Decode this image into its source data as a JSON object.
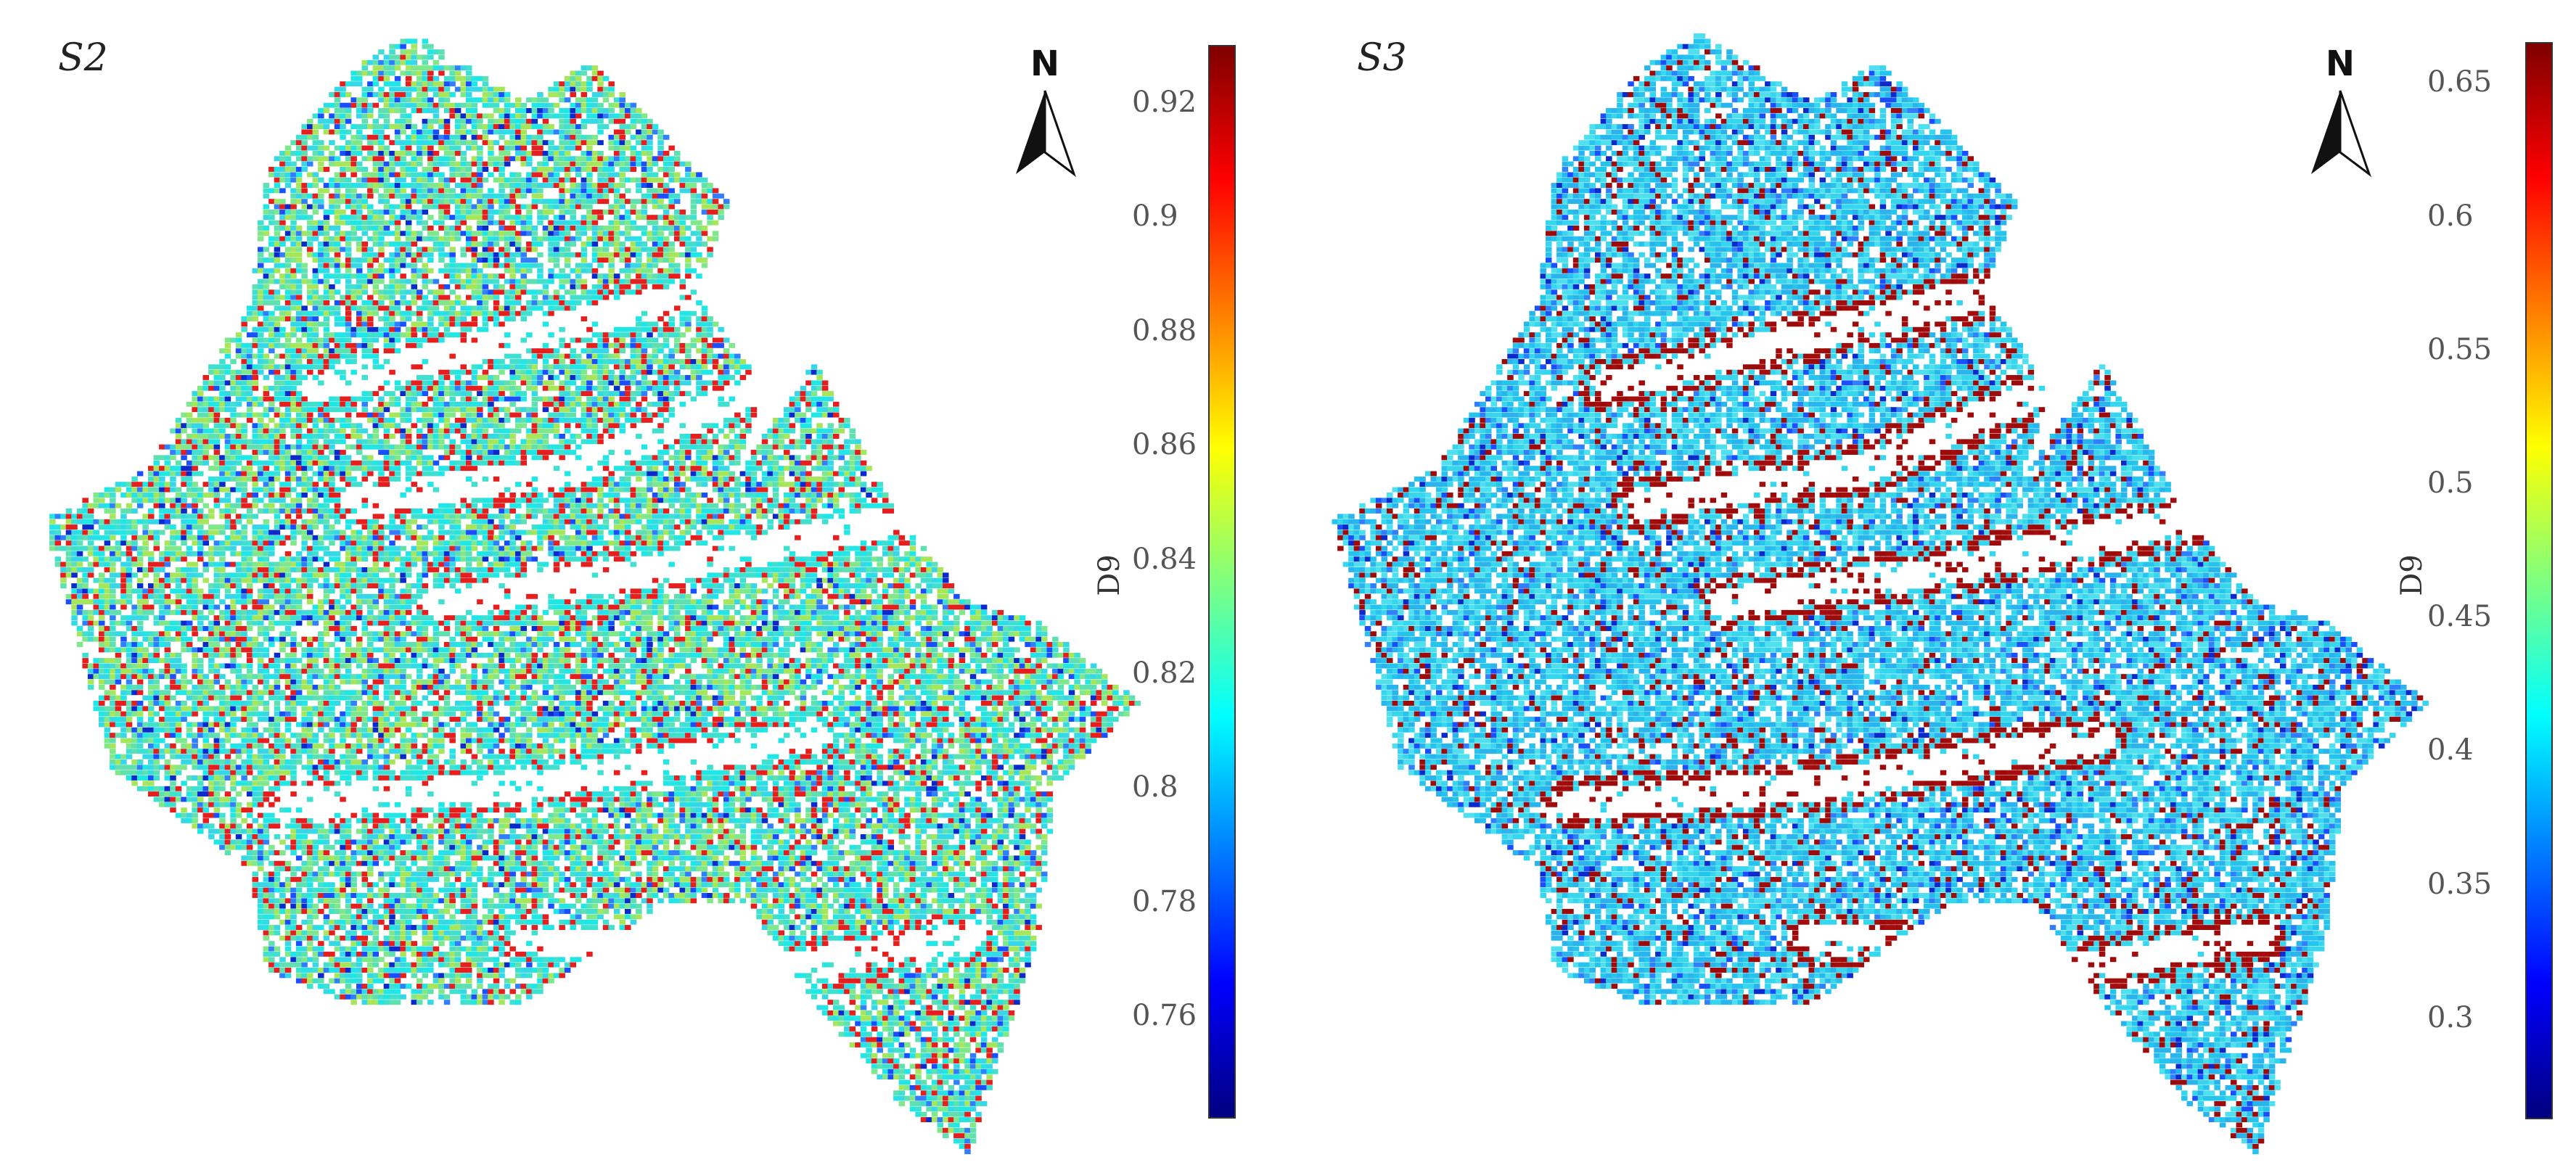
{
  "panels": [
    {
      "label": "S2",
      "north": "N",
      "colorbar": {
        "label": "D9",
        "ticks": [
          "0.92",
          "0.9",
          "0.88",
          "0.86",
          "0.84",
          "0.82",
          "0.8",
          "0.78",
          "0.76"
        ],
        "min": 0.742,
        "max": 0.93,
        "tick_values": [
          0.92,
          0.9,
          0.88,
          0.86,
          0.84,
          0.82,
          0.8,
          0.78,
          0.76
        ],
        "colormap": "jet",
        "colors": [
          "#00007f",
          "#0000ff",
          "#007fff",
          "#00ffff",
          "#7fff7f",
          "#ffff00",
          "#ff7f00",
          "#ff0000",
          "#7f0000"
        ]
      }
    },
    {
      "label": "S3",
      "north": "N",
      "colorbar": {
        "label": "D9",
        "ticks": [
          "0.65",
          "0.6",
          "0.55",
          "0.5",
          "0.45",
          "0.4",
          "0.35",
          "0.3"
        ],
        "min": 0.262,
        "max": 0.665,
        "tick_values": [
          0.65,
          0.6,
          0.55,
          0.5,
          0.45,
          0.4,
          0.35,
          0.3
        ],
        "colormap": "jet",
        "colors": [
          "#00007f",
          "#0000ff",
          "#007fff",
          "#00ffff",
          "#7fff7f",
          "#ffff00",
          "#ff7f00",
          "#ff0000",
          "#7f0000"
        ]
      }
    }
  ]
}
